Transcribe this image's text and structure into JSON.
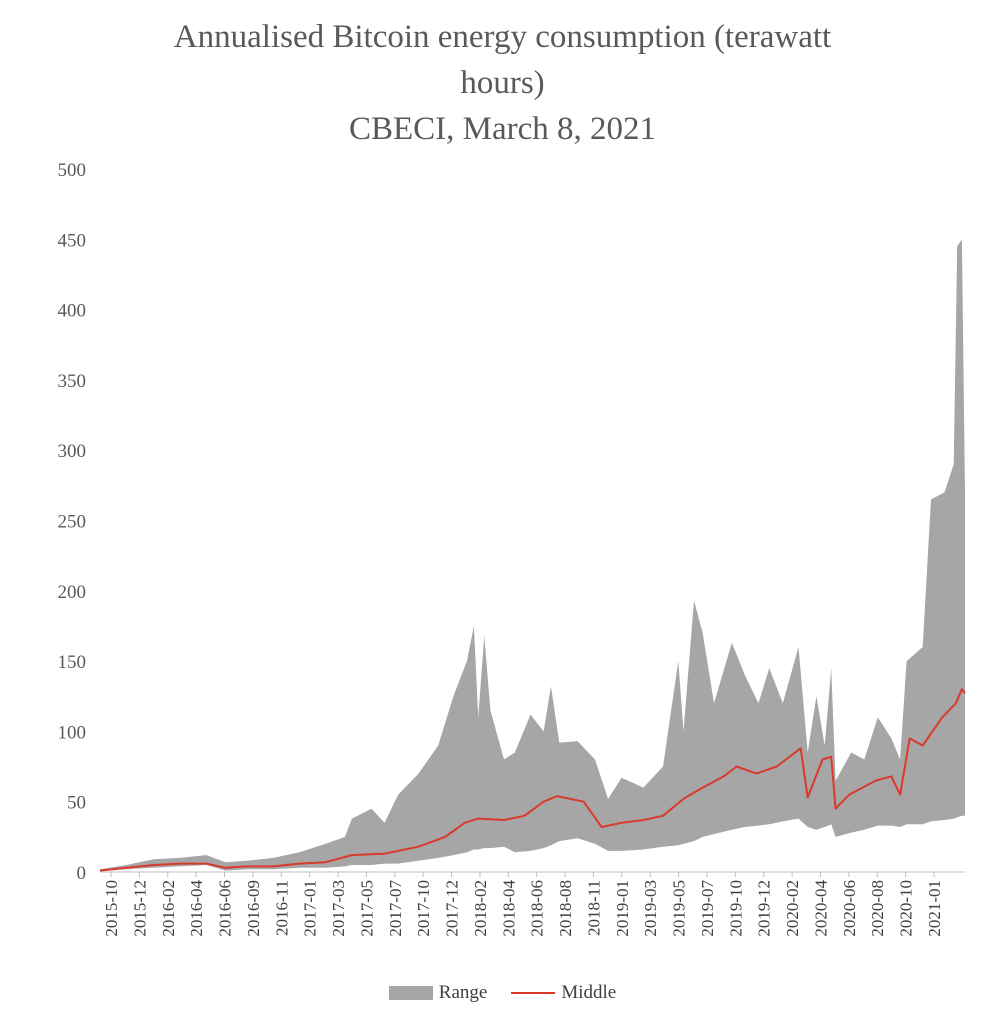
{
  "title": {
    "line1": "Annualised Bitcoin energy consumption (terawatt",
    "line2": "hours)",
    "line3": "CBECI, March 8, 2021"
  },
  "legend": {
    "range_label": "Range",
    "middle_label": "Middle"
  },
  "colors": {
    "range": "#a6a6a6",
    "middle": "#d93a2b",
    "axis": "#bfbfbf",
    "text": "#595959"
  },
  "chart_data": {
    "type": "area",
    "title": "Annualised Bitcoin energy consumption (terawatt hours) CBECI, March 8, 2021",
    "ylim": [
      0,
      500
    ],
    "y_ticks": [
      0,
      50,
      100,
      150,
      200,
      250,
      300,
      350,
      400,
      450,
      500
    ],
    "x_tick_labels": [
      "2015-10",
      "2015-12",
      "2016-02",
      "2016-04",
      "2016-06",
      "2016-09",
      "2016-11",
      "2017-01",
      "2017-03",
      "2017-05",
      "2017-07",
      "2017-10",
      "2017-12",
      "2018-02",
      "2018-04",
      "2018-06",
      "2018-08",
      "2018-11",
      "2019-01",
      "2019-03",
      "2019-05",
      "2019-07",
      "2019-10",
      "2019-12",
      "2020-02",
      "2020-04",
      "2020-06",
      "2020-08",
      "2020-10",
      "2021-01"
    ],
    "x_range": [
      "2015-10-01",
      "2021-03-08"
    ],
    "grid": false,
    "legend_position": "bottom",
    "series": [
      {
        "name": "Range",
        "kind": "band",
        "points": [
          {
            "x": "2015-10-01",
            "low": 1,
            "high": 2
          },
          {
            "x": "2015-12-01",
            "low": 2,
            "high": 5
          },
          {
            "x": "2016-02-01",
            "low": 3,
            "high": 9
          },
          {
            "x": "2016-04-01",
            "low": 4,
            "high": 10
          },
          {
            "x": "2016-06-01",
            "low": 5,
            "high": 12
          },
          {
            "x": "2016-07-15",
            "low": 1,
            "high": 7
          },
          {
            "x": "2016-09-01",
            "low": 2,
            "high": 8
          },
          {
            "x": "2016-11-01",
            "low": 2,
            "high": 10
          },
          {
            "x": "2017-01-01",
            "low": 3,
            "high": 14
          },
          {
            "x": "2017-03-01",
            "low": 3,
            "high": 20
          },
          {
            "x": "2017-04-15",
            "low": 4,
            "high": 25
          },
          {
            "x": "2017-05-01",
            "low": 5,
            "high": 38
          },
          {
            "x": "2017-06-15",
            "low": 5,
            "high": 45
          },
          {
            "x": "2017-07-15",
            "low": 6,
            "high": 35
          },
          {
            "x": "2017-08-15",
            "low": 6,
            "high": 55
          },
          {
            "x": "2017-10-01",
            "low": 8,
            "high": 70
          },
          {
            "x": "2017-11-15",
            "low": 10,
            "high": 90
          },
          {
            "x": "2017-12-20",
            "low": 12,
            "high": 125
          },
          {
            "x": "2018-01-20",
            "low": 14,
            "high": 150
          },
          {
            "x": "2018-02-05",
            "low": 16,
            "high": 175
          },
          {
            "x": "2018-02-15",
            "low": 16,
            "high": 110
          },
          {
            "x": "2018-03-01",
            "low": 17,
            "high": 168
          },
          {
            "x": "2018-03-15",
            "low": 17,
            "high": 115
          },
          {
            "x": "2018-04-15",
            "low": 18,
            "high": 80
          },
          {
            "x": "2018-05-10",
            "low": 14,
            "high": 85
          },
          {
            "x": "2018-06-15",
            "low": 15,
            "high": 112
          },
          {
            "x": "2018-07-15",
            "low": 17,
            "high": 100
          },
          {
            "x": "2018-08-01",
            "low": 19,
            "high": 132
          },
          {
            "x": "2018-08-20",
            "low": 22,
            "high": 92
          },
          {
            "x": "2018-10-01",
            "low": 24,
            "high": 93
          },
          {
            "x": "2018-11-10",
            "low": 20,
            "high": 80
          },
          {
            "x": "2018-12-10",
            "low": 15,
            "high": 52
          },
          {
            "x": "2019-01-10",
            "low": 15,
            "high": 67
          },
          {
            "x": "2019-03-01",
            "low": 16,
            "high": 60
          },
          {
            "x": "2019-04-15",
            "low": 18,
            "high": 75
          },
          {
            "x": "2019-05-20",
            "low": 19,
            "high": 150
          },
          {
            "x": "2019-06-01",
            "low": 20,
            "high": 100
          },
          {
            "x": "2019-06-25",
            "low": 22,
            "high": 193
          },
          {
            "x": "2019-07-15",
            "low": 25,
            "high": 170
          },
          {
            "x": "2019-08-10",
            "low": 27,
            "high": 120
          },
          {
            "x": "2019-09-20",
            "low": 30,
            "high": 163
          },
          {
            "x": "2019-10-20",
            "low": 32,
            "high": 140
          },
          {
            "x": "2019-11-20",
            "low": 33,
            "high": 120
          },
          {
            "x": "2019-12-15",
            "low": 34,
            "high": 145
          },
          {
            "x": "2020-01-15",
            "low": 36,
            "high": 120
          },
          {
            "x": "2020-02-20",
            "low": 38,
            "high": 160
          },
          {
            "x": "2020-03-12",
            "low": 32,
            "high": 85
          },
          {
            "x": "2020-04-01",
            "low": 30,
            "high": 125
          },
          {
            "x": "2020-04-20",
            "low": 32,
            "high": 90
          },
          {
            "x": "2020-05-05",
            "low": 34,
            "high": 145
          },
          {
            "x": "2020-05-15",
            "low": 25,
            "high": 65
          },
          {
            "x": "2020-06-20",
            "low": 28,
            "high": 85
          },
          {
            "x": "2020-07-20",
            "low": 30,
            "high": 80
          },
          {
            "x": "2020-08-20",
            "low": 33,
            "high": 110
          },
          {
            "x": "2020-09-20",
            "low": 33,
            "high": 95
          },
          {
            "x": "2020-10-10",
            "low": 32,
            "high": 80
          },
          {
            "x": "2020-10-25",
            "low": 34,
            "high": 150
          },
          {
            "x": "2020-12-01",
            "low": 34,
            "high": 160
          },
          {
            "x": "2020-12-20",
            "low": 36,
            "high": 265
          },
          {
            "x": "2021-01-20",
            "low": 37,
            "high": 270
          },
          {
            "x": "2021-02-10",
            "low": 38,
            "high": 290
          },
          {
            "x": "2021-02-18",
            "low": 39,
            "high": 445
          },
          {
            "x": "2021-03-01",
            "low": 40,
            "high": 450
          },
          {
            "x": "2021-03-08",
            "low": 40,
            "high": 270
          }
        ]
      },
      {
        "name": "Middle",
        "kind": "line",
        "points": [
          {
            "x": "2015-10-01",
            "y": 1
          },
          {
            "x": "2015-12-01",
            "y": 3
          },
          {
            "x": "2016-02-01",
            "y": 5
          },
          {
            "x": "2016-04-01",
            "y": 6
          },
          {
            "x": "2016-06-01",
            "y": 6
          },
          {
            "x": "2016-07-15",
            "y": 3
          },
          {
            "x": "2016-09-01",
            "y": 4
          },
          {
            "x": "2016-11-01",
            "y": 4
          },
          {
            "x": "2017-01-01",
            "y": 6
          },
          {
            "x": "2017-03-01",
            "y": 7
          },
          {
            "x": "2017-05-01",
            "y": 12
          },
          {
            "x": "2017-07-15",
            "y": 13
          },
          {
            "x": "2017-10-01",
            "y": 18
          },
          {
            "x": "2017-12-01",
            "y": 25
          },
          {
            "x": "2018-01-15",
            "y": 35
          },
          {
            "x": "2018-02-15",
            "y": 38
          },
          {
            "x": "2018-04-15",
            "y": 37
          },
          {
            "x": "2018-06-01",
            "y": 40
          },
          {
            "x": "2018-07-15",
            "y": 50
          },
          {
            "x": "2018-08-15",
            "y": 54
          },
          {
            "x": "2018-10-15",
            "y": 50
          },
          {
            "x": "2018-11-25",
            "y": 32
          },
          {
            "x": "2019-01-10",
            "y": 35
          },
          {
            "x": "2019-03-01",
            "y": 37
          },
          {
            "x": "2019-04-15",
            "y": 40
          },
          {
            "x": "2019-06-01",
            "y": 52
          },
          {
            "x": "2019-07-15",
            "y": 60
          },
          {
            "x": "2019-09-01",
            "y": 68
          },
          {
            "x": "2019-10-01",
            "y": 75
          },
          {
            "x": "2019-11-15",
            "y": 70
          },
          {
            "x": "2020-01-01",
            "y": 75
          },
          {
            "x": "2020-02-25",
            "y": 88
          },
          {
            "x": "2020-03-12",
            "y": 53
          },
          {
            "x": "2020-04-15",
            "y": 80
          },
          {
            "x": "2020-05-05",
            "y": 82
          },
          {
            "x": "2020-05-15",
            "y": 45
          },
          {
            "x": "2020-06-15",
            "y": 55
          },
          {
            "x": "2020-08-15",
            "y": 65
          },
          {
            "x": "2020-09-20",
            "y": 68
          },
          {
            "x": "2020-10-10",
            "y": 55
          },
          {
            "x": "2020-11-01",
            "y": 95
          },
          {
            "x": "2020-12-01",
            "y": 90
          },
          {
            "x": "2021-01-15",
            "y": 110
          },
          {
            "x": "2021-02-15",
            "y": 120
          },
          {
            "x": "2021-03-01",
            "y": 130
          },
          {
            "x": "2021-03-08",
            "y": 127
          }
        ]
      }
    ]
  }
}
